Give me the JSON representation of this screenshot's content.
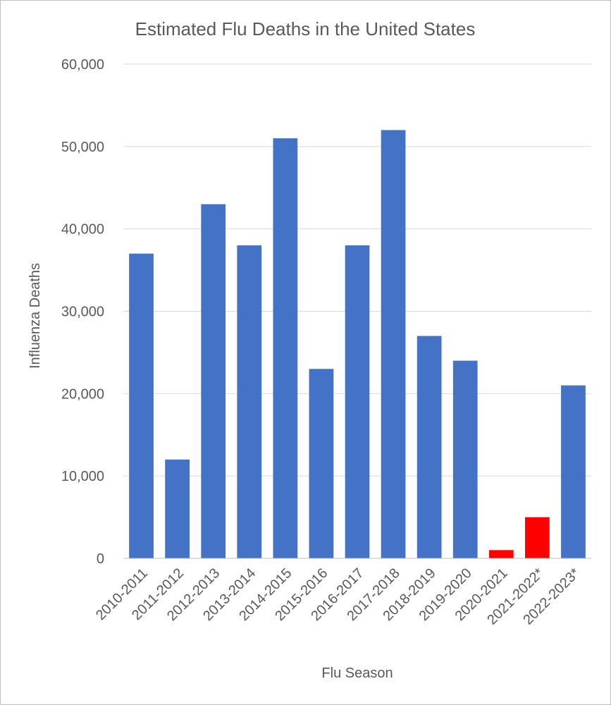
{
  "chart_data": {
    "type": "bar",
    "title": "Estimated Flu Deaths in the United States",
    "xlabel": "Flu Season",
    "ylabel": "Influenza Deaths",
    "ylim": [
      0,
      60000
    ],
    "yticks": [
      0,
      10000,
      20000,
      30000,
      40000,
      50000,
      60000
    ],
    "ytick_labels": [
      "0",
      "10,000",
      "20,000",
      "30,000",
      "40,000",
      "50,000",
      "60,000"
    ],
    "grid": true,
    "categories": [
      "2010-2011",
      "2011-2012",
      "2012-2013",
      "2013-2014",
      "2014-2015",
      "2015-2016",
      "2016-2017",
      "2017-2018",
      "2018-2019",
      "2019-2020",
      "2020-2021",
      "2021-2022*",
      "2022-2023*"
    ],
    "values": [
      37000,
      12000,
      43000,
      38000,
      51000,
      23000,
      38000,
      52000,
      27000,
      24000,
      1000,
      5000,
      21000
    ],
    "colors": [
      "#4472c4",
      "#4472c4",
      "#4472c4",
      "#4472c4",
      "#4472c4",
      "#4472c4",
      "#4472c4",
      "#4472c4",
      "#4472c4",
      "#4472c4",
      "#ff0000",
      "#ff0000",
      "#4472c4"
    ]
  }
}
